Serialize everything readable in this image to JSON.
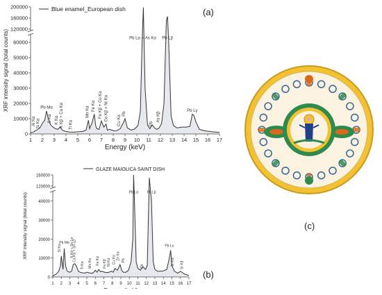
{
  "panel_labels": {
    "a": "(a)",
    "b": "(b)",
    "c": "(c)"
  },
  "chart_data": [
    {
      "id": "a",
      "type": "line",
      "ylabel": "XRF intensity signal (total counts)",
      "xlabel": "Energy (keV)",
      "xlim": [
        1,
        17
      ],
      "x_ticks": [
        1,
        2,
        3,
        4,
        5,
        6,
        7,
        8,
        9,
        10,
        11,
        12,
        13,
        14,
        15,
        16,
        17
      ],
      "y_ticks_lower": [
        0,
        10000,
        20000,
        30000,
        40000,
        50000,
        60000
      ],
      "y_ticks_upper": [
        120000,
        160000,
        200000
      ],
      "y_break": [
        65000,
        115000
      ],
      "legend": "Blue enamel_European dish",
      "series": [
        {
          "x": [
            1.0,
            1.3,
            1.5,
            1.8,
            2.0,
            2.2,
            2.35,
            2.5,
            2.7,
            2.9,
            3.1,
            3.3,
            3.5,
            3.7,
            3.9,
            4.1,
            4.3,
            4.6,
            5.0,
            5.4,
            5.7,
            5.9,
            6.0,
            6.2,
            6.4,
            6.5,
            6.6,
            6.8,
            7.0,
            7.2,
            7.4,
            7.5,
            7.7,
            7.9,
            8.1,
            8.3,
            8.6,
            8.9,
            9.0,
            9.2,
            9.5,
            9.8,
            10.1,
            10.3,
            10.45,
            10.55,
            10.7,
            10.9,
            11.1,
            11.3,
            11.5,
            11.7,
            11.9,
            12.1,
            12.3,
            12.5,
            12.6,
            12.7,
            12.9,
            13.1,
            13.4,
            13.8,
            14.2,
            14.5,
            14.7,
            14.85,
            15.0,
            15.3,
            15.8,
            16.3,
            17.0
          ],
          "y": [
            800,
            1500,
            2500,
            4000,
            7000,
            9000,
            15000,
            10000,
            6000,
            4500,
            3500,
            3000,
            4500,
            2500,
            1800,
            1500,
            1300,
            1200,
            1400,
            1600,
            2500,
            9000,
            3500,
            7000,
            13000,
            6000,
            3500,
            3000,
            8500,
            4500,
            6500,
            2500,
            3000,
            2500,
            2000,
            2200,
            3500,
            8000,
            10000,
            4000,
            2600,
            3200,
            5500,
            15000,
            60000,
            198000,
            30000,
            6000,
            3500,
            6000,
            4000,
            3000,
            4000,
            7000,
            20000,
            150000,
            166000,
            60000,
            12000,
            5500,
            4000,
            4500,
            4500,
            5000,
            13000,
            12000,
            8000,
            3000,
            2000,
            1500,
            1000
          ]
        }
      ],
      "annotations": [
        {
          "x": 1.35,
          "y": 5000,
          "text": "Al Kα"
        },
        {
          "x": 1.75,
          "y": 3500,
          "text": "Si Kα"
        },
        {
          "x": 2.35,
          "y": 16500,
          "text": "Pb Mα"
        },
        {
          "x": 2.7,
          "y": 7000,
          "text": "S Kα"
        },
        {
          "x": 3.3,
          "y": 6000,
          "text": "K Kα"
        },
        {
          "x": 3.7,
          "y": 3800,
          "text": "K Kβ + Ca Kα"
        },
        {
          "x": 4.5,
          "y": 2800,
          "text": "Ti Kα"
        },
        {
          "x": 5.9,
          "y": 10500,
          "text": "Mn Kα"
        },
        {
          "x": 6.4,
          "y": 14500,
          "text": "Fe Kα"
        },
        {
          "x": 7.0,
          "y": 10000,
          "text": "Fe Kβ + Co Kα"
        },
        {
          "x": 7.5,
          "y": 8000,
          "text": "Co Kβ + Ni Kα"
        },
        {
          "x": 8.6,
          "y": 5000,
          "text": "Cu Kα"
        },
        {
          "x": 9.0,
          "y": 11500,
          "text": "Pb"
        },
        {
          "x": 10.5,
          "y": 62000,
          "text": "Pb Lα + As Kα"
        },
        {
          "x": 11.3,
          "y": 5000,
          "text": "Pb"
        },
        {
          "x": 11.9,
          "y": 7500,
          "text": "As Kβ"
        },
        {
          "x": 12.6,
          "y": 62000,
          "text": "Pb Lβ"
        },
        {
          "x": 14.7,
          "y": 14500,
          "text": "Pb Lγ"
        }
      ]
    },
    {
      "id": "b",
      "type": "line",
      "ylabel": "XRF intensity signal (total counts)",
      "xlabel": "Energy (keV)",
      "xlim": [
        1,
        17
      ],
      "x_ticks": [
        1,
        2,
        3,
        4,
        5,
        6,
        7,
        8,
        9,
        10,
        11,
        12,
        13,
        14,
        15,
        16,
        17
      ],
      "y_ticks_lower": [
        0,
        10000,
        20000,
        30000,
        40000
      ],
      "y_ticks_upper": [
        120000,
        160000
      ],
      "y_break": [
        45000,
        115000
      ],
      "legend": "GLAZE MAIOLICA SAINT DISH",
      "series": [
        {
          "x": [
            1.0,
            1.4,
            1.7,
            1.9,
            2.0,
            2.2,
            2.35,
            2.5,
            2.7,
            3.0,
            3.2,
            3.4,
            3.6,
            3.8,
            4.0,
            4.2,
            4.5,
            4.8,
            5.0,
            5.4,
            5.7,
            6.0,
            6.2,
            6.4,
            6.6,
            6.8,
            7.0,
            7.3,
            7.6,
            7.9,
            8.1,
            8.3,
            8.6,
            8.9,
            9.1,
            9.3,
            9.6,
            9.9,
            10.2,
            10.4,
            10.5,
            10.6,
            10.8,
            11.0,
            11.3,
            11.6,
            11.9,
            12.1,
            12.35,
            12.6,
            12.8,
            13.0,
            13.3,
            13.6,
            14.0,
            14.4,
            14.7,
            14.85,
            15.0,
            15.3,
            15.7,
            16.0,
            16.5,
            17.0
          ],
          "y": [
            500,
            1500,
            3000,
            6000,
            11000,
            4000,
            15000,
            6000,
            3000,
            2500,
            3000,
            6500,
            7000,
            5500,
            3000,
            2500,
            2200,
            2000,
            2500,
            2000,
            2000,
            3500,
            2500,
            4000,
            2800,
            3000,
            2600,
            2300,
            2500,
            3000,
            2500,
            4500,
            3500,
            6500,
            3500,
            2500,
            2500,
            3500,
            8000,
            20000,
            160000,
            40000,
            8000,
            4500,
            3500,
            5500,
            4000,
            6000,
            150000,
            40000,
            8000,
            4000,
            3000,
            3000,
            3200,
            4000,
            10000,
            14000,
            6000,
            3000,
            2000,
            3000,
            1500,
            800
          ]
        }
      ],
      "annotations": [
        {
          "x": 1.9,
          "y": 13000,
          "text": "Si Kα"
        },
        {
          "x": 2.35,
          "y": 17500,
          "text": "Pb Mα"
        },
        {
          "x": 3.35,
          "y": 10000,
          "text": "K Kα + Sn Lα"
        },
        {
          "x": 3.65,
          "y": 7800,
          "text": "Ca Kα + Sn Lβ"
        },
        {
          "x": 4.6,
          "y": 4000,
          "text": "Ti Kα"
        },
        {
          "x": 5.5,
          "y": 4500,
          "text": "Mn Kα"
        },
        {
          "x": 6.4,
          "y": 6000,
          "text": "Fe Kα"
        },
        {
          "x": 7.2,
          "y": 4500,
          "text": "Fe Kβ"
        },
        {
          "x": 7.7,
          "y": 5500,
          "text": "Ni Kα"
        },
        {
          "x": 8.3,
          "y": 6500,
          "text": "Cu Kα"
        },
        {
          "x": 8.8,
          "y": 8500,
          "text": "Zn Kα"
        },
        {
          "x": 9.4,
          "y": 7500,
          "text": "Pb"
        },
        {
          "x": 10.5,
          "y": 44000,
          "text": "Pb Lα"
        },
        {
          "x": 11.6,
          "y": 4500,
          "text": "Pb"
        },
        {
          "x": 12.6,
          "y": 44000,
          "text": "Pb Lβ"
        },
        {
          "x": 14.7,
          "y": 16000,
          "text": "Pb Lγ"
        },
        {
          "x": 15.2,
          "y": 5500,
          "text": "Sr Kα"
        },
        {
          "x": 16.3,
          "y": 4000,
          "text": "Sr Kβ"
        }
      ]
    }
  ],
  "photo": {
    "rim_color": "#f2c232",
    "body_color": "#fbf3df",
    "accent_colors": [
      "#2e8a4e",
      "#d96a1c",
      "#1f3f8a",
      "#3a6e9e"
    ]
  }
}
